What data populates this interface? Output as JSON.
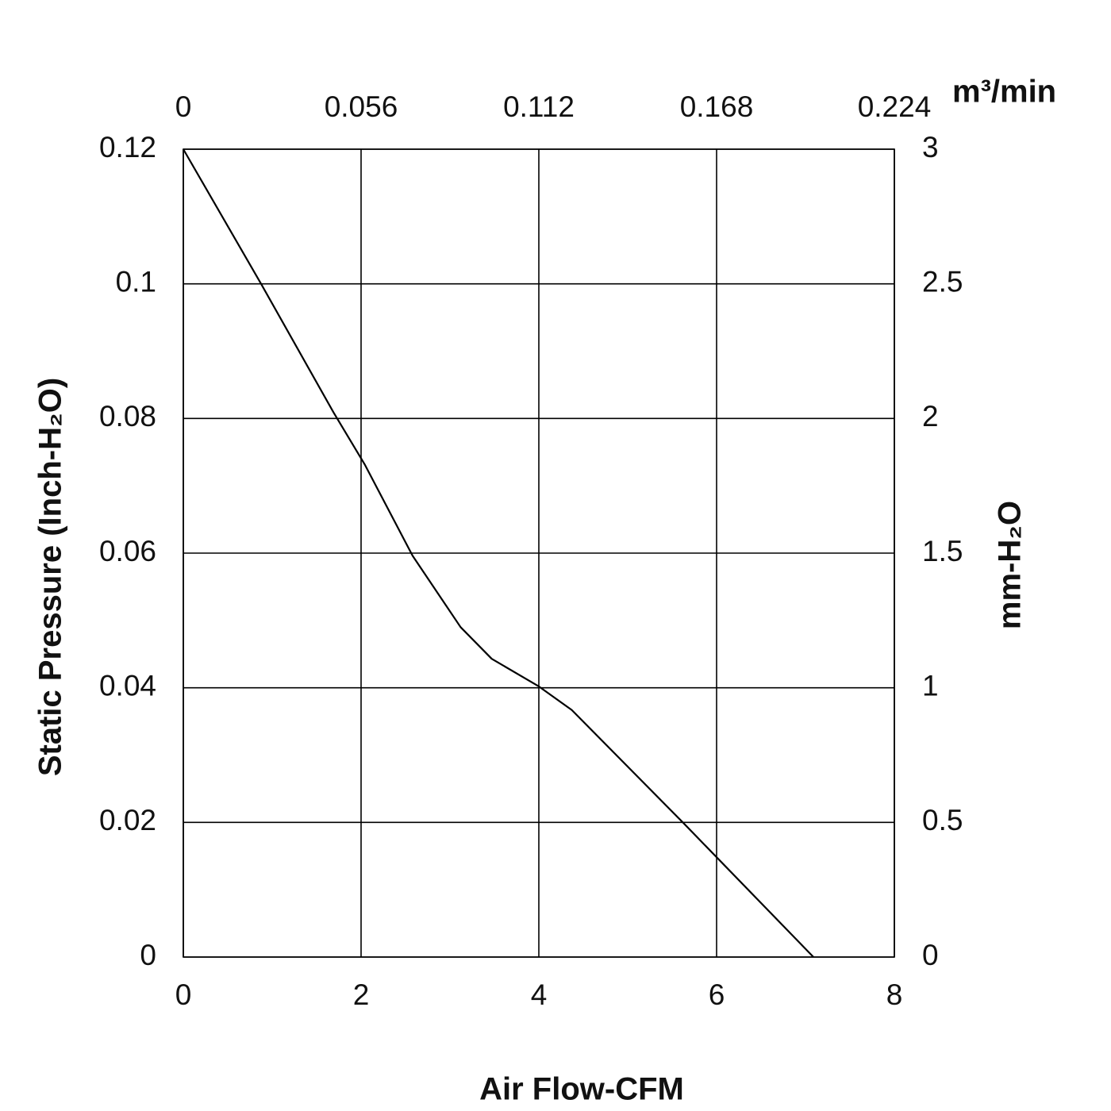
{
  "chart_data": {
    "type": "line",
    "x_label": "Air Flow-CFM",
    "y_label": "Static Pressure (Inch-H₂O)",
    "y2_label": "mm-H₂O",
    "x2_label": "m³/min",
    "x": [
      0,
      0.875,
      1.69,
      2.04,
      2.58,
      3.12,
      3.47,
      4.0,
      4.37,
      5.62,
      7.09
    ],
    "y": [
      0.12,
      0.1,
      0.0809,
      0.0732,
      0.0596,
      0.049,
      0.0443,
      0.0402,
      0.0367,
      0.02,
      0
    ],
    "color": "#000000",
    "xlim": [
      0,
      8
    ],
    "xticks": [
      0,
      2,
      4,
      6,
      8
    ],
    "ylim": [
      0,
      0.12
    ],
    "yticks": [
      0,
      0.02,
      0.04,
      0.06,
      0.08,
      0.1,
      0.12
    ],
    "x2lim": [
      0,
      0.224
    ],
    "x2ticks": [
      0,
      0.056,
      0.112,
      0.168,
      0.224
    ],
    "y2lim": [
      0,
      3
    ],
    "y2ticks": [
      0,
      0.5,
      1,
      1.5,
      2,
      2.5,
      3
    ],
    "grid": true
  }
}
